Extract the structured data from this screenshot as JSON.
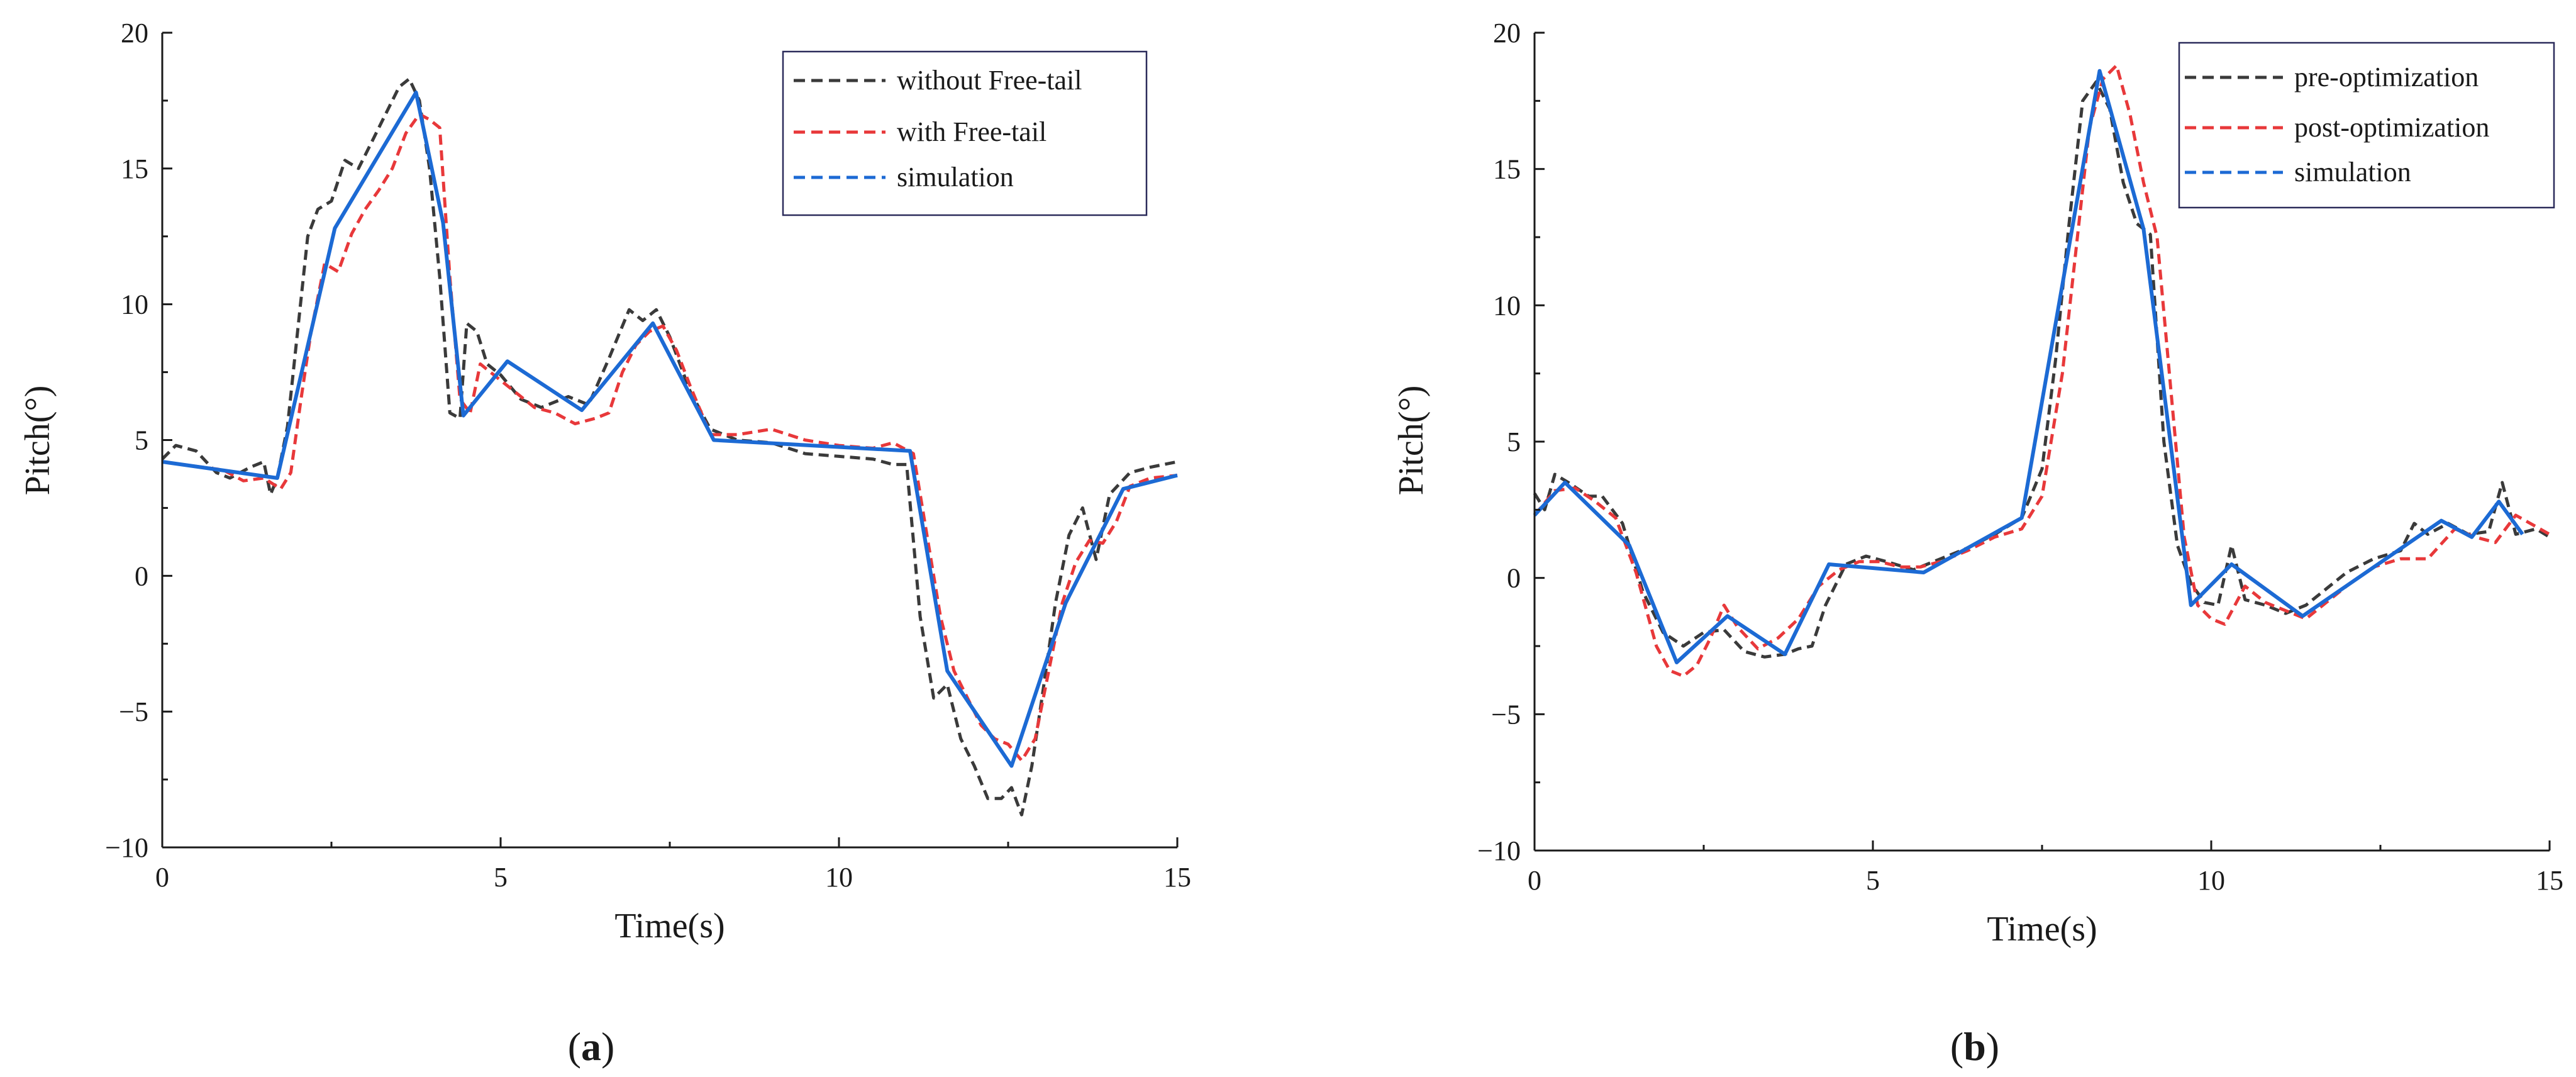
{
  "chart_data": [
    {
      "type": "line",
      "panel": "a",
      "caption_pre": "(",
      "caption_letter": "a",
      "caption_post": ")",
      "xlabel": "Time(s)",
      "ylabel": "Pitch(°)",
      "xlim": [
        0,
        15
      ],
      "ylim": [
        -10,
        20
      ],
      "xticks": [
        0,
        5,
        10,
        15
      ],
      "yticks": [
        -10,
        -5,
        0,
        5,
        10,
        15,
        20
      ],
      "ytick_labels": [
        "−10",
        "−5",
        "0",
        "5",
        "10",
        "15",
        "20"
      ],
      "legend_position": "top-right",
      "series": [
        {
          "name": "without Free-tail",
          "color": "#3a3a3a",
          "dash": true,
          "x": [
            0,
            0.2,
            0.5,
            0.8,
            1.0,
            1.3,
            1.5,
            1.6,
            1.7,
            1.85,
            2.0,
            2.15,
            2.3,
            2.5,
            2.7,
            2.9,
            3.1,
            3.3,
            3.5,
            3.65,
            3.8,
            3.95,
            4.1,
            4.25,
            4.4,
            4.5,
            4.65,
            4.8,
            5.0,
            5.3,
            5.6,
            6.0,
            6.3,
            6.6,
            6.9,
            7.1,
            7.3,
            7.5,
            7.8,
            8.1,
            8.5,
            9.0,
            9.5,
            10.0,
            10.5,
            10.8,
            11.0,
            11.2,
            11.4,
            11.6,
            11.8,
            12.0,
            12.2,
            12.4,
            12.55,
            12.7,
            12.85,
            13.0,
            13.2,
            13.4,
            13.6,
            13.8,
            14.0,
            14.3,
            14.6,
            15.0
          ],
          "values": [
            4.3,
            4.8,
            4.6,
            3.8,
            3.6,
            4.0,
            4.2,
            3.0,
            3.6,
            5.5,
            9.0,
            12.5,
            13.5,
            13.8,
            15.3,
            15.0,
            16.0,
            17.0,
            18.0,
            18.3,
            17.5,
            15.0,
            11.0,
            6.0,
            5.8,
            9.3,
            9.0,
            7.8,
            7.4,
            6.5,
            6.2,
            6.6,
            6.3,
            8.0,
            9.8,
            9.4,
            9.8,
            8.8,
            6.8,
            5.4,
            5.0,
            4.9,
            4.5,
            4.4,
            4.3,
            4.1,
            4.1,
            -1.5,
            -4.5,
            -4.0,
            -6.0,
            -7.0,
            -8.2,
            -8.2,
            -7.8,
            -8.8,
            -7.0,
            -4.5,
            -1.0,
            1.5,
            2.5,
            0.6,
            3.0,
            3.8,
            4.0,
            4.2
          ]
        },
        {
          "name": "with Free-tail",
          "color": "#e8383a",
          "dash": true,
          "x": [
            0,
            0.3,
            0.6,
            0.9,
            1.2,
            1.5,
            1.75,
            1.9,
            2.05,
            2.2,
            2.4,
            2.6,
            2.8,
            3.0,
            3.2,
            3.4,
            3.6,
            3.8,
            3.95,
            4.1,
            4.25,
            4.4,
            4.55,
            4.7,
            4.9,
            5.2,
            5.5,
            5.8,
            6.1,
            6.4,
            6.6,
            6.8,
            7.0,
            7.2,
            7.4,
            7.6,
            7.8,
            8.1,
            8.5,
            9.0,
            9.5,
            10.0,
            10.5,
            10.8,
            11.1,
            11.3,
            11.5,
            11.7,
            11.9,
            12.1,
            12.3,
            12.5,
            12.7,
            12.9,
            13.1,
            13.3,
            13.5,
            13.7,
            13.9,
            14.1,
            14.3,
            14.6,
            15.0
          ],
          "values": [
            4.2,
            4.1,
            4.0,
            3.9,
            3.5,
            3.6,
            3.2,
            3.8,
            6.5,
            9.0,
            11.5,
            11.2,
            12.6,
            13.5,
            14.2,
            15.0,
            16.3,
            17.0,
            16.8,
            16.5,
            11.0,
            6.5,
            6.0,
            7.8,
            7.4,
            6.8,
            6.2,
            6.0,
            5.6,
            5.8,
            6.0,
            7.5,
            8.5,
            9.0,
            9.2,
            8.3,
            7.0,
            5.2,
            5.2,
            5.4,
            5.0,
            4.8,
            4.7,
            4.9,
            4.5,
            1.5,
            -1.5,
            -3.5,
            -4.5,
            -5.5,
            -6.0,
            -6.2,
            -6.8,
            -6.0,
            -3.5,
            -1.0,
            0.5,
            1.3,
            1.2,
            2.0,
            3.3,
            3.6,
            3.7
          ]
        },
        {
          "name": "simulation",
          "color": "#1c6ad4",
          "dash": false,
          "x": [
            0,
            1.7,
            2.55,
            3.75,
            4.15,
            4.45,
            5.1,
            6.2,
            7.25,
            8.15,
            11.05,
            11.6,
            12.55,
            13.35,
            14.2,
            15.0
          ],
          "values": [
            4.2,
            3.6,
            12.8,
            17.8,
            13.0,
            5.9,
            7.9,
            6.1,
            9.3,
            5.0,
            4.6,
            -3.5,
            -7.0,
            -1.0,
            3.2,
            3.7
          ]
        }
      ]
    },
    {
      "type": "line",
      "panel": "b",
      "caption_pre": "(",
      "caption_letter": "b",
      "caption_post": ")",
      "xlabel": "Time(s)",
      "ylabel": "Pitch(°)",
      "xlim": [
        0,
        15
      ],
      "ylim": [
        -10,
        20
      ],
      "xticks": [
        0,
        5,
        10,
        15
      ],
      "yticks": [
        -10,
        -5,
        0,
        5,
        10,
        15,
        20
      ],
      "ytick_labels": [
        "−10",
        "−5",
        "0",
        "5",
        "10",
        "15",
        "20"
      ],
      "legend_position": "top-right",
      "series": [
        {
          "name": "pre-optimization",
          "color": "#3a3a3a",
          "dash": true,
          "x": [
            0,
            0.15,
            0.3,
            0.5,
            0.8,
            1.0,
            1.3,
            1.6,
            1.9,
            2.2,
            2.5,
            2.8,
            3.1,
            3.4,
            3.7,
            3.9,
            4.1,
            4.3,
            4.6,
            4.9,
            5.2,
            5.6,
            6.0,
            6.4,
            6.8,
            7.2,
            7.5,
            7.7,
            7.9,
            8.1,
            8.3,
            8.5,
            8.7,
            8.9,
            9.1,
            9.3,
            9.5,
            9.7,
            9.9,
            10.1,
            10.3,
            10.5,
            10.8,
            11.1,
            11.4,
            11.7,
            12.0,
            12.4,
            12.8,
            13.0,
            13.2,
            13.5,
            13.8,
            14.1,
            14.3,
            14.5,
            14.8,
            15.0
          ],
          "values": [
            3.1,
            2.5,
            3.8,
            3.5,
            3.0,
            3.0,
            2.0,
            -0.5,
            -2.0,
            -2.5,
            -2.0,
            -1.9,
            -2.7,
            -2.9,
            -2.8,
            -2.6,
            -2.5,
            -1.0,
            0.5,
            0.8,
            0.6,
            0.3,
            0.7,
            1.1,
            1.6,
            2.2,
            4.0,
            8.0,
            13.0,
            17.5,
            18.2,
            17.2,
            14.5,
            13.0,
            12.6,
            5.0,
            1.2,
            -0.2,
            -0.9,
            -1.0,
            1.2,
            -0.8,
            -1.0,
            -1.3,
            -1.0,
            -0.4,
            0.2,
            0.7,
            1.0,
            2.0,
            1.6,
            2.0,
            1.6,
            1.7,
            3.5,
            1.6,
            1.8,
            1.5
          ]
        },
        {
          "name": "post-optimization",
          "color": "#e8383a",
          "dash": true,
          "x": [
            0,
            0.3,
            0.6,
            0.9,
            1.2,
            1.5,
            1.8,
            2.0,
            2.2,
            2.4,
            2.6,
            2.8,
            3.0,
            3.3,
            3.6,
            3.9,
            4.2,
            4.5,
            4.8,
            5.1,
            5.4,
            5.7,
            6.0,
            6.4,
            6.8,
            7.2,
            7.5,
            7.8,
            8.0,
            8.2,
            8.4,
            8.6,
            8.8,
            9.0,
            9.2,
            9.4,
            9.6,
            9.8,
            10.0,
            10.2,
            10.5,
            10.8,
            11.1,
            11.4,
            11.7,
            12.0,
            12.4,
            12.8,
            13.2,
            13.6,
            13.9,
            14.2,
            14.5,
            15.0
          ],
          "values": [
            2.3,
            3.2,
            3.3,
            2.8,
            2.2,
            0.2,
            -2.5,
            -3.4,
            -3.6,
            -3.2,
            -2.2,
            -1.0,
            -1.8,
            -2.6,
            -2.2,
            -1.5,
            -0.3,
            0.3,
            0.6,
            0.6,
            0.4,
            0.4,
            0.6,
            1.0,
            1.5,
            1.8,
            3.0,
            7.5,
            12.0,
            16.5,
            18.3,
            18.8,
            17.0,
            14.5,
            12.5,
            7.0,
            1.5,
            -1.0,
            -1.5,
            -1.7,
            -0.3,
            -0.9,
            -1.2,
            -1.5,
            -0.9,
            -0.3,
            0.4,
            0.7,
            0.7,
            1.8,
            1.5,
            1.3,
            2.3,
            1.6
          ]
        },
        {
          "name": "simulation",
          "color": "#1c6ad4",
          "dash": false,
          "x": [
            0,
            0.45,
            1.4,
            2.1,
            2.85,
            3.7,
            4.35,
            5.75,
            7.2,
            8.35,
            9.0,
            9.7,
            10.3,
            11.35,
            13.4,
            13.85,
            14.25,
            14.6
          ],
          "values": [
            2.3,
            3.5,
            1.2,
            -3.1,
            -1.4,
            -2.8,
            0.5,
            0.2,
            2.2,
            18.6,
            12.8,
            -1.0,
            0.5,
            -1.4,
            2.1,
            1.5,
            2.8,
            1.6
          ]
        }
      ]
    }
  ]
}
